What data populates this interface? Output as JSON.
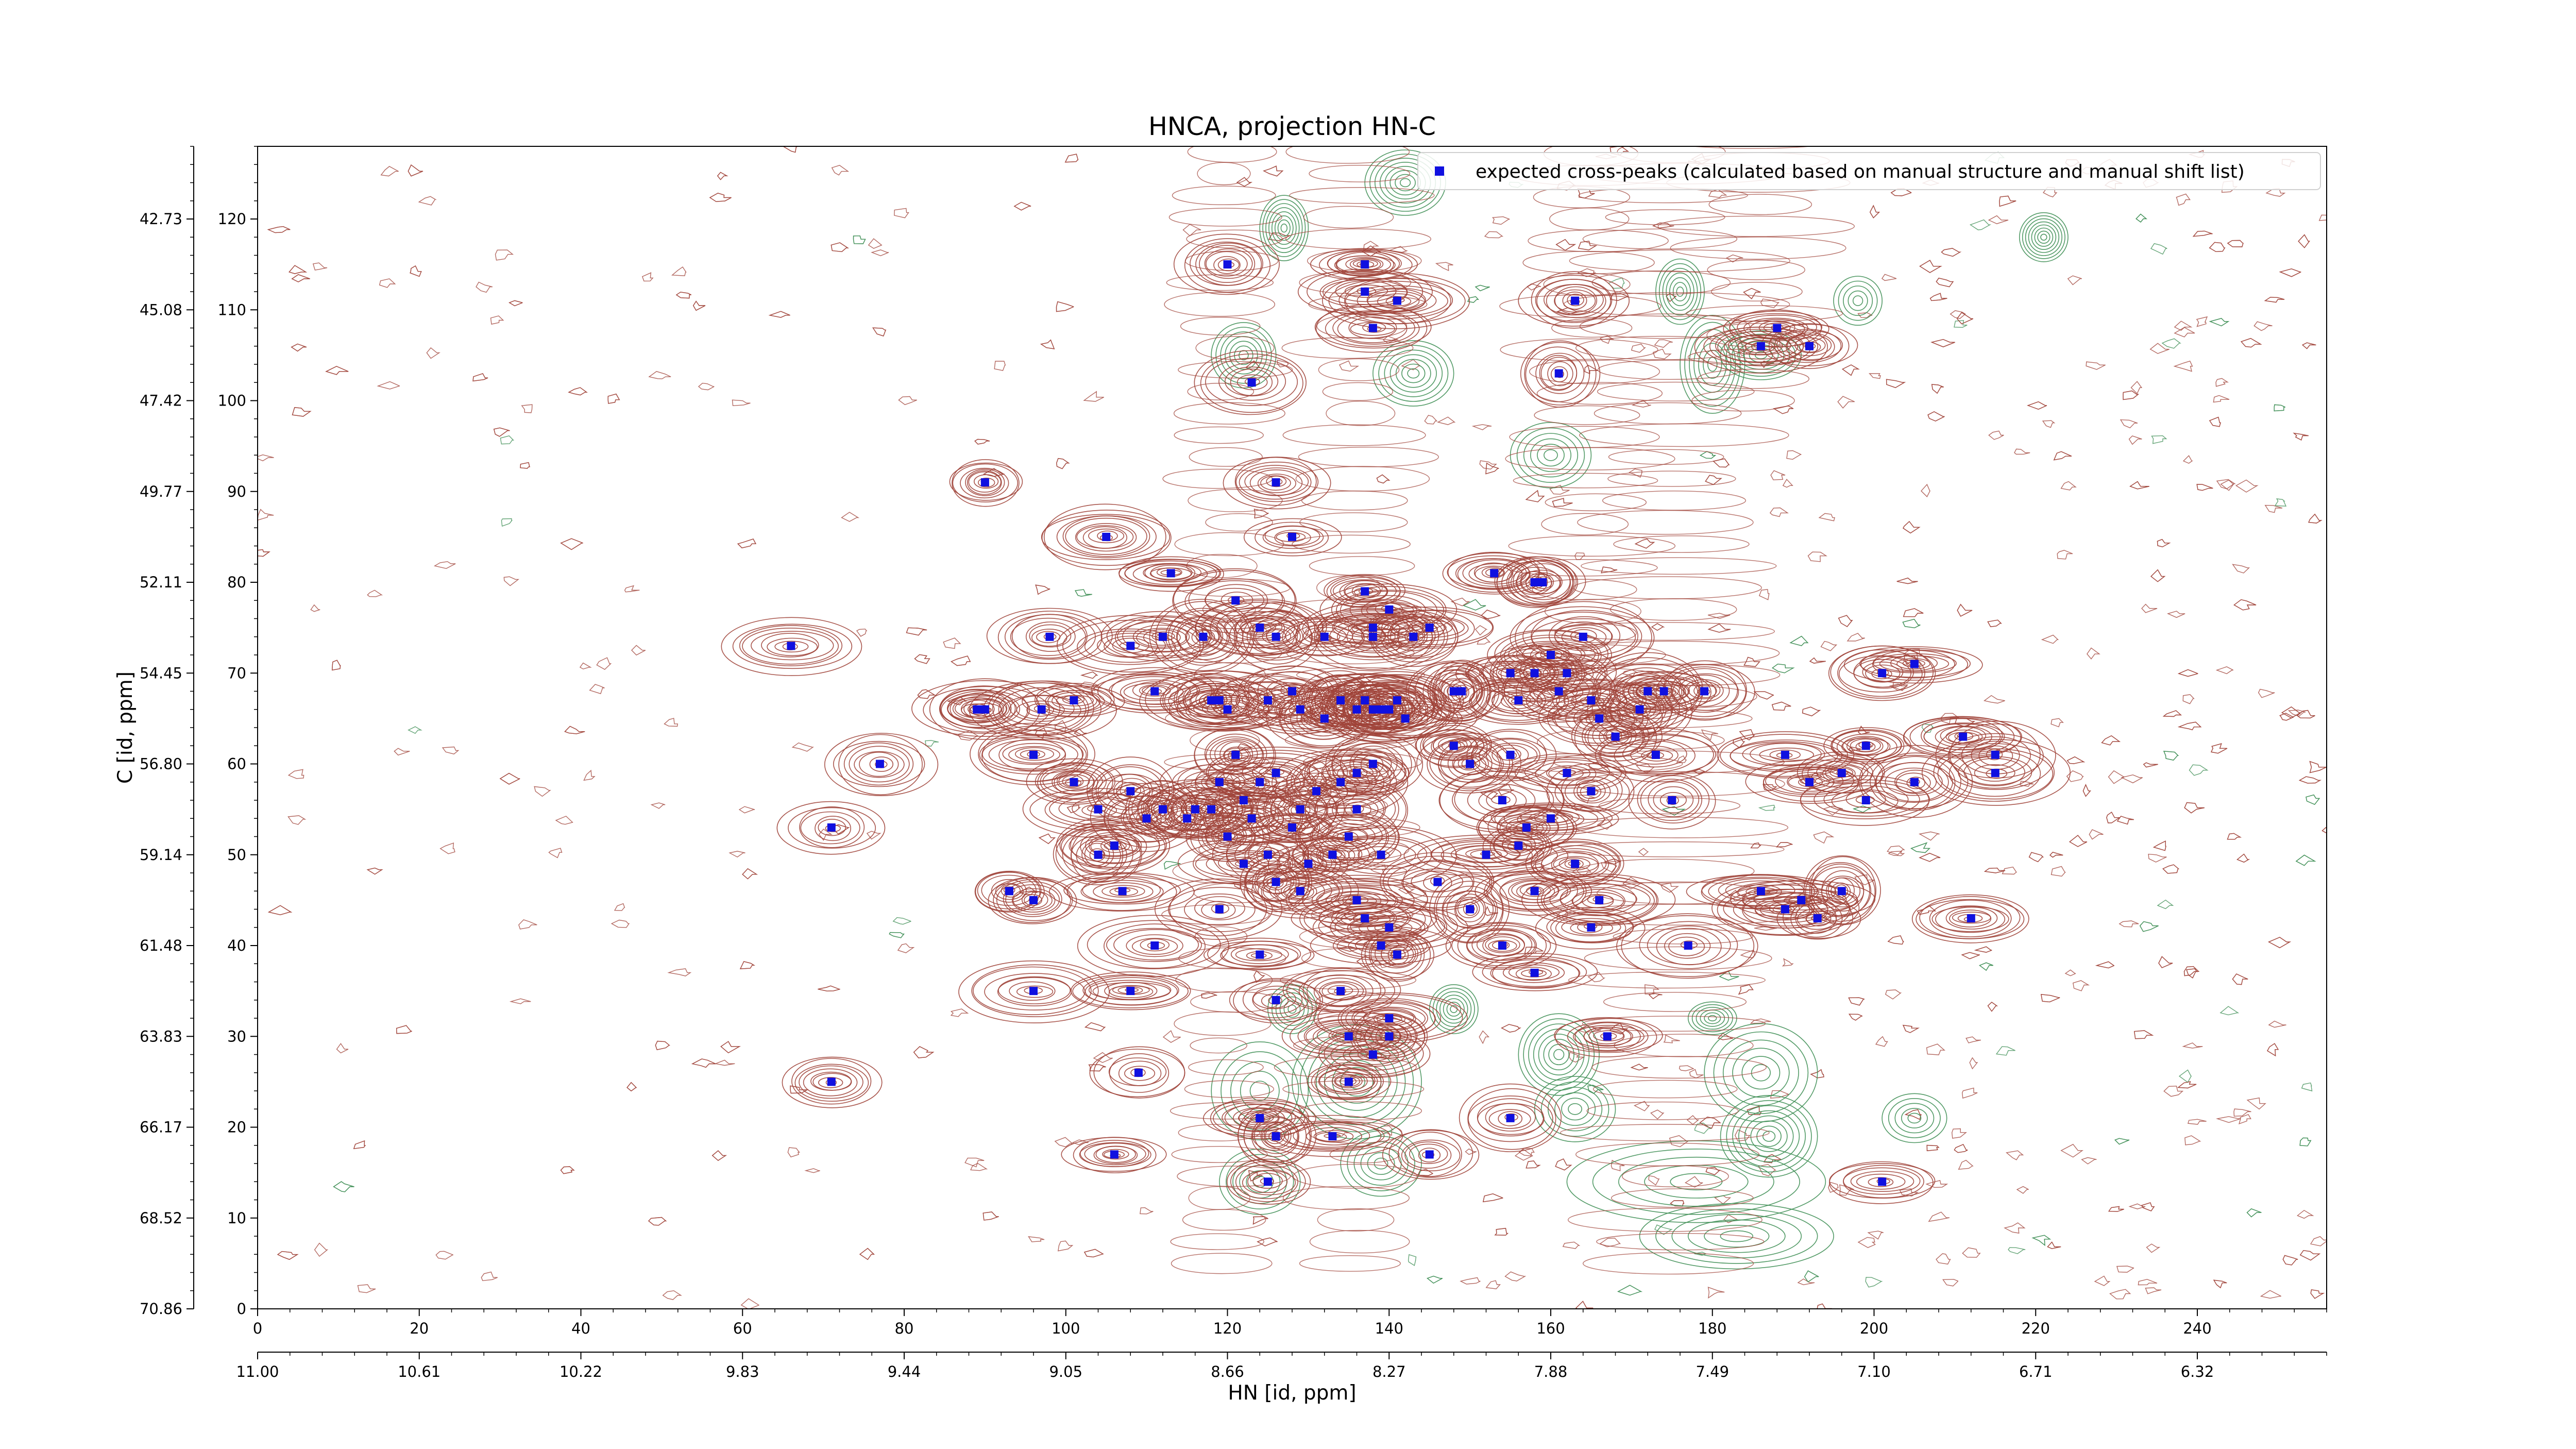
{
  "chart_data": {
    "type": "contour",
    "title": "HNCA, projection HN-C",
    "xlabel": "HN [id, ppm]",
    "ylabel": "C [id, ppm]",
    "x_index_range": [
      0,
      256
    ],
    "y_index_range": [
      0,
      128
    ],
    "x_index_ticks": [
      0,
      20,
      40,
      60,
      80,
      100,
      120,
      140,
      160,
      180,
      200,
      220,
      240
    ],
    "y_index_ticks": [
      0,
      10,
      20,
      30,
      40,
      50,
      60,
      70,
      80,
      90,
      100,
      110,
      120
    ],
    "x_ppm_ticks": [
      "11.00",
      "10.61",
      "10.22",
      "9.83",
      "9.44",
      "9.05",
      "8.66",
      "8.27",
      "7.88",
      "7.49",
      "7.10",
      "6.71",
      "6.32"
    ],
    "y_ppm_ticks": [
      "70.86",
      "68.52",
      "66.17",
      "63.83",
      "61.48",
      "59.14",
      "56.80",
      "54.45",
      "52.11",
      "49.77",
      "47.42",
      "45.08",
      "42.73"
    ],
    "colors": {
      "positive_contours": "#a0443a",
      "negative_contours": "#3f8f55",
      "peaks": "#1010e0"
    },
    "legend": {
      "label": "expected cross-peaks (calculated based on manual structure and manual shift list)",
      "placement": "top-right"
    },
    "series": [
      {
        "name": "expected cross-peaks (calculated based on manual structure and manual shift list)",
        "type": "scatter",
        "points": [
          [
            120,
            115
          ],
          [
            123,
            102
          ],
          [
            126,
            91
          ],
          [
            137,
            115
          ],
          [
            137,
            112
          ],
          [
            138,
            108
          ],
          [
            141,
            111
          ],
          [
            161,
            103
          ],
          [
            163,
            111
          ],
          [
            186,
            106
          ],
          [
            188,
            108
          ],
          [
            192,
            106
          ],
          [
            90,
            91
          ],
          [
            66,
            73
          ],
          [
            71,
            53
          ],
          [
            77,
            60
          ],
          [
            71,
            25
          ],
          [
            105,
            85
          ],
          [
            128,
            85
          ],
          [
            113,
            81
          ],
          [
            153,
            81
          ],
          [
            158,
            80
          ],
          [
            159,
            80
          ],
          [
            98,
            74
          ],
          [
            108,
            73
          ],
          [
            112,
            74
          ],
          [
            117,
            74
          ],
          [
            121,
            78
          ],
          [
            124,
            75
          ],
          [
            126,
            74
          ],
          [
            132,
            74
          ],
          [
            137,
            79
          ],
          [
            138,
            75
          ],
          [
            138,
            74
          ],
          [
            140,
            77
          ],
          [
            143,
            74
          ],
          [
            145,
            75
          ],
          [
            89,
            66
          ],
          [
            90,
            66
          ],
          [
            97,
            66
          ],
          [
            101,
            67
          ],
          [
            111,
            68
          ],
          [
            118,
            67
          ],
          [
            119,
            67
          ],
          [
            120,
            66
          ],
          [
            125,
            67
          ],
          [
            128,
            68
          ],
          [
            129,
            66
          ],
          [
            132,
            65
          ],
          [
            134,
            67
          ],
          [
            136,
            66
          ],
          [
            137,
            67
          ],
          [
            138,
            66
          ],
          [
            139,
            66
          ],
          [
            140,
            66
          ],
          [
            141,
            67
          ],
          [
            142,
            65
          ],
          [
            148,
            68
          ],
          [
            149,
            68
          ],
          [
            155,
            70
          ],
          [
            156,
            67
          ],
          [
            158,
            70
          ],
          [
            160,
            72
          ],
          [
            161,
            68
          ],
          [
            162,
            70
          ],
          [
            164,
            74
          ],
          [
            165,
            67
          ],
          [
            166,
            65
          ],
          [
            171,
            66
          ],
          [
            172,
            68
          ],
          [
            174,
            68
          ],
          [
            179,
            68
          ],
          [
            96,
            61
          ],
          [
            101,
            58
          ],
          [
            104,
            55
          ],
          [
            108,
            57
          ],
          [
            112,
            55
          ],
          [
            116,
            55
          ],
          [
            119,
            58
          ],
          [
            121,
            61
          ],
          [
            122,
            56
          ],
          [
            124,
            58
          ],
          [
            126,
            59
          ],
          [
            128,
            53
          ],
          [
            129,
            55
          ],
          [
            131,
            57
          ],
          [
            134,
            58
          ],
          [
            136,
            55
          ],
          [
            136,
            59
          ],
          [
            138,
            60
          ],
          [
            104,
            50
          ],
          [
            106,
            51
          ],
          [
            110,
            54
          ],
          [
            115,
            54
          ],
          [
            118,
            55
          ],
          [
            120,
            52
          ],
          [
            123,
            54
          ],
          [
            125,
            50
          ],
          [
            130,
            49
          ],
          [
            133,
            50
          ],
          [
            135,
            52
          ],
          [
            139,
            50
          ],
          [
            93,
            46
          ],
          [
            96,
            45
          ],
          [
            107,
            46
          ],
          [
            119,
            44
          ],
          [
            122,
            49
          ],
          [
            126,
            47
          ],
          [
            129,
            46
          ],
          [
            136,
            45
          ],
          [
            137,
            43
          ],
          [
            140,
            42
          ],
          [
            146,
            47
          ],
          [
            150,
            44
          ],
          [
            152,
            50
          ],
          [
            154,
            56
          ],
          [
            156,
            51
          ],
          [
            157,
            53
          ],
          [
            158,
            46
          ],
          [
            160,
            54
          ],
          [
            163,
            49
          ],
          [
            166,
            45
          ],
          [
            150,
            60
          ],
          [
            148,
            62
          ],
          [
            155,
            61
          ],
          [
            162,
            59
          ],
          [
            165,
            57
          ],
          [
            168,
            63
          ],
          [
            173,
            61
          ],
          [
            175,
            56
          ],
          [
            177,
            40
          ],
          [
            189,
            61
          ],
          [
            192,
            58
          ],
          [
            196,
            59
          ],
          [
            199,
            56
          ],
          [
            199,
            62
          ],
          [
            201,
            70
          ],
          [
            205,
            71
          ],
          [
            205,
            58
          ],
          [
            211,
            63
          ],
          [
            215,
            61
          ],
          [
            215,
            59
          ],
          [
            186,
            46
          ],
          [
            189,
            44
          ],
          [
            191,
            45
          ],
          [
            193,
            43
          ],
          [
            196,
            46
          ],
          [
            212,
            43
          ],
          [
            96,
            35
          ],
          [
            108,
            35
          ],
          [
            111,
            40
          ],
          [
            124,
            39
          ],
          [
            126,
            34
          ],
          [
            134,
            35
          ],
          [
            135,
            30
          ],
          [
            140,
            32
          ],
          [
            139,
            40
          ],
          [
            141,
            39
          ],
          [
            154,
            40
          ],
          [
            158,
            37
          ],
          [
            165,
            42
          ],
          [
            167,
            30
          ],
          [
            109,
            26
          ],
          [
            124,
            21
          ],
          [
            126,
            19
          ],
          [
            133,
            19
          ],
          [
            135,
            25
          ],
          [
            138,
            28
          ],
          [
            140,
            30
          ],
          [
            145,
            17
          ],
          [
            155,
            21
          ],
          [
            106,
            17
          ],
          [
            125,
            14
          ],
          [
            201,
            14
          ]
        ]
      }
    ]
  }
}
